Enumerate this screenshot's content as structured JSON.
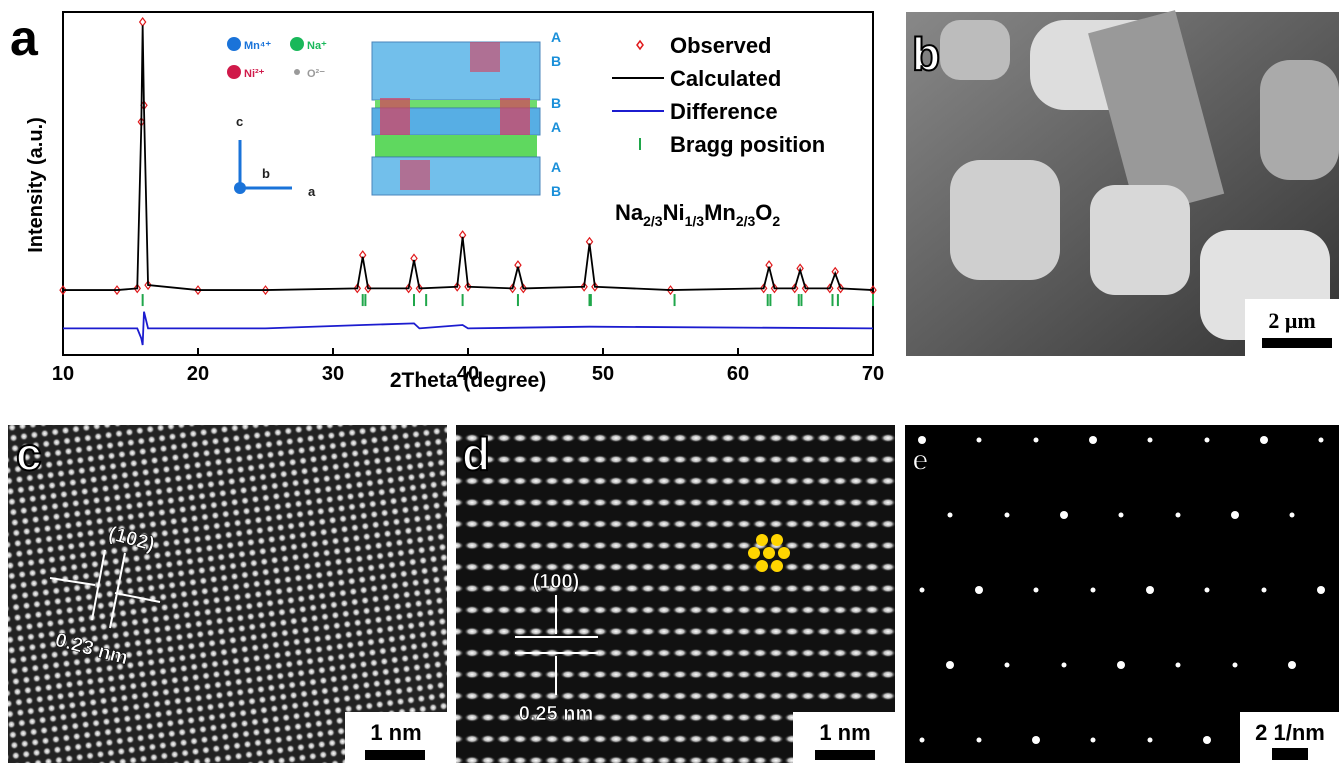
{
  "chart_data": {
    "type": "line",
    "panel_label": "a",
    "x_label": "2Theta (degree)",
    "y_label": "Intensity (a.u.)",
    "xlim": [
      10,
      70
    ],
    "xticks": [
      10,
      20,
      30,
      40,
      50,
      60,
      70
    ],
    "ylim": [
      0,
      100
    ],
    "series": [
      {
        "name": "Observed",
        "color": "#e0191b",
        "marker": "diamond",
        "x": [
          10,
          14,
          15.5,
          15.8,
          15.9,
          16.0,
          16.3,
          20,
          25,
          31.8,
          32.2,
          32.6,
          35.6,
          36.0,
          36.4,
          39.2,
          39.6,
          40.0,
          43.3,
          43.7,
          44.1,
          48.6,
          49.0,
          49.4,
          55,
          61.9,
          62.3,
          62.7,
          64.2,
          64.6,
          65.0,
          66.8,
          67.2,
          67.6,
          70
        ],
        "values": [
          19.5,
          19.5,
          20,
          70,
          100,
          75,
          21,
          19.5,
          19.5,
          20,
          30,
          20,
          20,
          29,
          20,
          20.5,
          36,
          20.5,
          20,
          27,
          20,
          20.5,
          34,
          20.5,
          19.5,
          20,
          27,
          20,
          20,
          26,
          20,
          20,
          25,
          20,
          19.5
        ]
      },
      {
        "name": "Calculated",
        "color": "#000000",
        "marker": "line",
        "x": [
          10,
          14,
          15.5,
          15.8,
          15.9,
          16.0,
          16.3,
          20,
          25,
          31.8,
          32.2,
          32.6,
          35.6,
          36.0,
          36.4,
          39.2,
          39.6,
          40.0,
          43.3,
          43.7,
          44.1,
          48.6,
          49.0,
          49.4,
          55,
          61.9,
          62.3,
          62.7,
          64.2,
          64.6,
          65.0,
          66.8,
          67.2,
          67.6,
          70
        ],
        "values": [
          19.5,
          19.5,
          20,
          69,
          99,
          74,
          21,
          19.5,
          19.5,
          20,
          29.5,
          20,
          20,
          28.5,
          20,
          20.5,
          35.5,
          20.5,
          20,
          26.5,
          20,
          20.5,
          33.5,
          20.5,
          19.5,
          20,
          26.5,
          20,
          20,
          25.5,
          20,
          20,
          24.5,
          20,
          19.5
        ]
      },
      {
        "name": "Difference",
        "color": "#1c1ccf",
        "marker": "line",
        "x": [
          10,
          15.5,
          15.8,
          15.9,
          16.0,
          16.3,
          25,
          32.2,
          36.0,
          36.4,
          39.6,
          40.0,
          49.0,
          70
        ],
        "values": [
          8,
          8,
          5,
          3,
          13,
          8,
          8,
          9,
          9.5,
          8,
          9,
          8,
          8.5,
          8
        ]
      },
      {
        "name": "Bragg position",
        "color": "#1fa64a",
        "marker": "tick",
        "x": [
          15.9,
          32.2,
          32.4,
          36.0,
          36.9,
          39.6,
          43.7,
          49.0,
          49.1,
          55.3,
          62.2,
          62.4,
          64.5,
          64.7,
          67.0,
          67.4,
          70
        ],
        "values": [
          16.5,
          16.5,
          16.5,
          16.5,
          16.5,
          16.5,
          16.5,
          16.5,
          16.5,
          16.5,
          16.5,
          16.5,
          16.5,
          16.5,
          16.5,
          16.5,
          16.5
        ]
      }
    ],
    "formula": [
      [
        "Na",
        "2/3"
      ],
      [
        "Ni",
        "1/3"
      ],
      [
        "Mn",
        "2/3"
      ],
      [
        "O",
        "2"
      ]
    ],
    "inset": {
      "species": [
        {
          "name": "Mn⁴⁺",
          "color": "#1a73d9"
        },
        {
          "name": "Na⁺",
          "color": "#19b85a"
        },
        {
          "name": "Ni²⁺",
          "color": "#d01a4a"
        },
        {
          "name": "O²⁻",
          "color": "#9a9a9a"
        }
      ],
      "axes": [
        "c",
        "b",
        "a"
      ],
      "stacking": [
        "A",
        "B",
        "B",
        "A",
        "A",
        "B"
      ]
    }
  },
  "panels": [
    {
      "label": "b",
      "scale_bar": "2 μm"
    },
    {
      "label": "c",
      "scale_bar": "1 nm",
      "annotations": [
        "(102)",
        "0.23 nm"
      ]
    },
    {
      "label": "d",
      "scale_bar": "1 nm",
      "annotations": [
        "(100)",
        "0.25 nm"
      ]
    },
    {
      "label": "e",
      "scale_bar": "2 1/nm"
    }
  ]
}
